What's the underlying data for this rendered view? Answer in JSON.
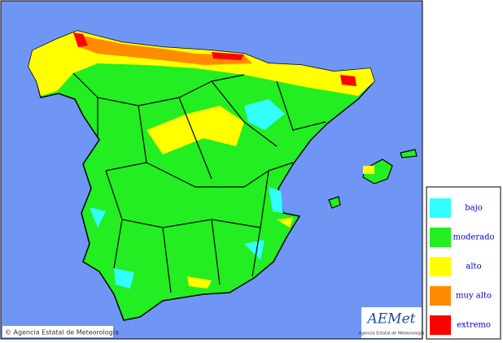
{
  "credit": "© Agencia Estatal de Meteorología",
  "logo": {
    "text": "AEMet",
    "subtitle": "Agencia Estatal de Meteorología"
  },
  "legend": {
    "items": [
      {
        "label": "bajo",
        "color": "#33ffff"
      },
      {
        "label": "moderado",
        "color": "#22ee22"
      },
      {
        "label": "alto",
        "color": "#ffff00"
      },
      {
        "label": "muy alto",
        "color": "#ff8c00"
      },
      {
        "label": "extremo",
        "color": "#ff0000"
      }
    ]
  }
}
